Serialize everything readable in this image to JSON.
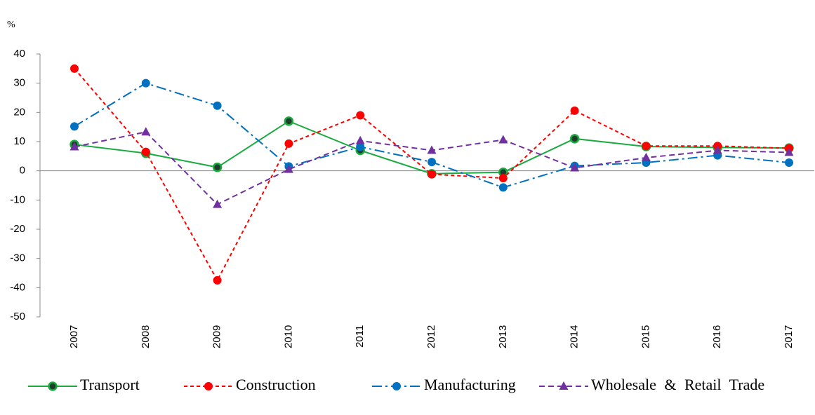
{
  "chart_data": {
    "type": "line",
    "y_label": "%",
    "categories": [
      "2007",
      "2008",
      "2009",
      "2010",
      "2011",
      "2012",
      "2013",
      "2014",
      "2015",
      "2016",
      "2017"
    ],
    "series": [
      {
        "name": "Transport",
        "color": "#1aab40",
        "values": [
          9,
          6,
          1.2,
          17,
          7,
          -1,
          -0.5,
          11,
          8.3,
          8,
          7.8
        ]
      },
      {
        "name": "Construction",
        "color": "#ff0000",
        "values": [
          35,
          6.5,
          -37.5,
          9.3,
          19,
          -1.2,
          -2.5,
          20.6,
          8.5,
          8.5,
          7.7
        ]
      },
      {
        "name": "Manufacturing",
        "color": "#0070c0",
        "values": [
          15.2,
          30,
          22.3,
          1.5,
          8.2,
          3,
          -5.7,
          1.7,
          2.8,
          5.3,
          2.8
        ]
      },
      {
        "name": "Wholesale & Retail Trade",
        "color": "#7030a0",
        "values": [
          8.2,
          13.3,
          -11.5,
          0.5,
          10.3,
          7,
          10.6,
          1,
          4.5,
          7,
          6.3
        ]
      }
    ],
    "ylim": [
      -50,
      40
    ],
    "yticks": [
      -50,
      -40,
      -30,
      -20,
      -10,
      0,
      10,
      20,
      30,
      40
    ],
    "legend": "bottom"
  }
}
